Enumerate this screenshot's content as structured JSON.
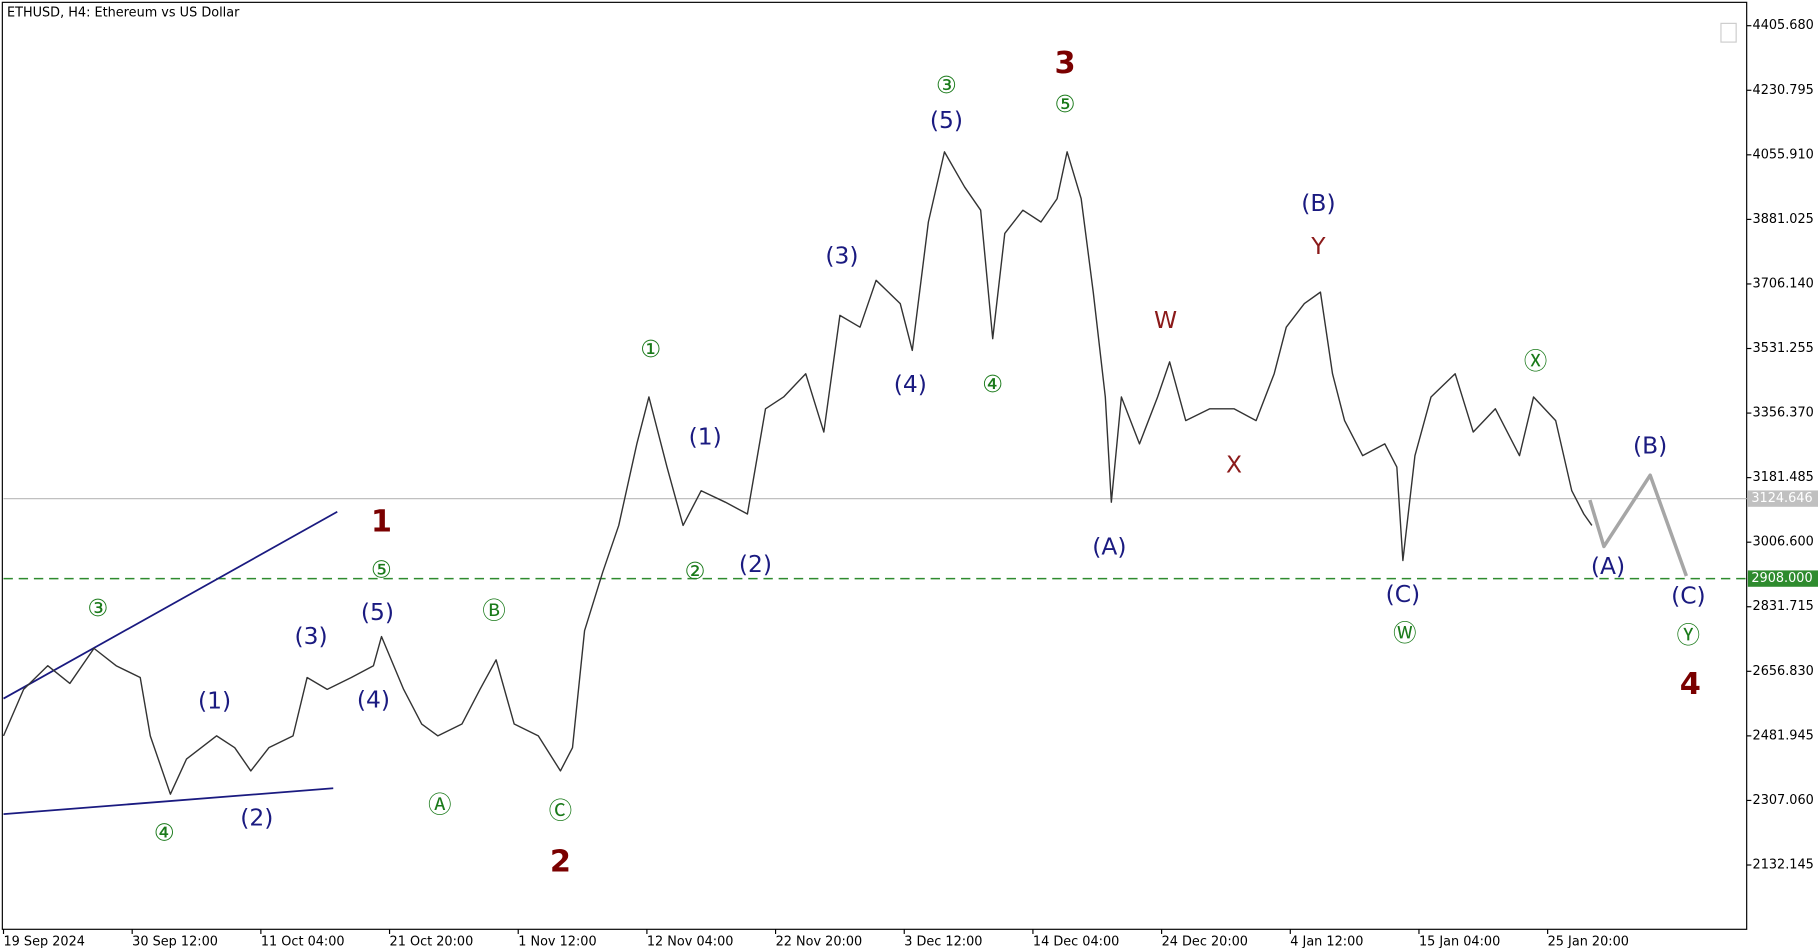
{
  "chart_data": {
    "type": "line",
    "title": "ETHUSD, H4:  Ethereum vs US Dollar",
    "xlim": [
      0,
      867
    ],
    "ylim": [
      1958,
      4469
    ],
    "xticks": [
      {
        "value": 0,
        "label": "19 Sep 2024"
      },
      {
        "value": 64,
        "label": "30 Sep 12:00"
      },
      {
        "value": 128,
        "label": "11 Oct 04:00"
      },
      {
        "value": 192,
        "label": "21 Oct 20:00"
      },
      {
        "value": 256,
        "label": "1 Nov 12:00"
      },
      {
        "value": 320,
        "label": "12 Nov 04:00"
      },
      {
        "value": 384,
        "label": "22 Nov 20:00"
      },
      {
        "value": 448,
        "label": "3 Dec 12:00"
      },
      {
        "value": 512,
        "label": "14 Dec 04:00"
      },
      {
        "value": 576,
        "label": "24 Dec 20:00"
      },
      {
        "value": 640,
        "label": "4 Jan 12:00"
      },
      {
        "value": 704,
        "label": "15 Jan 04:00"
      },
      {
        "value": 768,
        "label": "25 Jan 20:00"
      }
    ],
    "yticks": [
      {
        "value": 4405.68,
        "label": "4405.680"
      },
      {
        "value": 4230.795,
        "label": "4230.795"
      },
      {
        "value": 4055.91,
        "label": "4055.910"
      },
      {
        "value": 3881.025,
        "label": "3881.025"
      },
      {
        "value": 3706.14,
        "label": "3706.140"
      },
      {
        "value": 3531.255,
        "label": "3531.255"
      },
      {
        "value": 3356.37,
        "label": "3356.370"
      },
      {
        "value": 3181.485,
        "label": "3181.485"
      },
      {
        "value": 3006.6,
        "label": "3006.600"
      },
      {
        "value": 2831.715,
        "label": "2831.715"
      },
      {
        "value": 2656.83,
        "label": "2656.830"
      },
      {
        "value": 2481.945,
        "label": "2481.945"
      },
      {
        "value": 2307.06,
        "label": "2307.060"
      },
      {
        "value": 2132.145,
        "label": "2132.145"
      }
    ],
    "series": [
      {
        "color": "#333333",
        "x": [
          0,
          10,
          22,
          33,
          45,
          56,
          68,
          73,
          83,
          91,
          106,
          115,
          123,
          132,
          144,
          151,
          161,
          173,
          184,
          188,
          199,
          208,
          216,
          228,
          237,
          245,
          254,
          266,
          277,
          283,
          289,
          298,
          306,
          315,
          321,
          330,
          338,
          347,
          359,
          370,
          379,
          388,
          399,
          408,
          416,
          426,
          434,
          446,
          452,
          460,
          468,
          478,
          486,
          492,
          498,
          507,
          516,
          524,
          529,
          536,
          542,
          548,
          551,
          556,
          565,
          574,
          580,
          588,
          600,
          612,
          623,
          632,
          638,
          647,
          655,
          661,
          667,
          676,
          687,
          693,
          696,
          702,
          710,
          722,
          731,
          742,
          754,
          761,
          772,
          780,
          786,
          790
        ],
        "values": [
          2482,
          2608,
          2672,
          2624,
          2719,
          2672,
          2640,
          2482,
          2324,
          2419,
          2482,
          2450,
          2387,
          2450,
          2482,
          2640,
          2608,
          2640,
          2672,
          2751,
          2608,
          2514,
          2482,
          2514,
          2608,
          2688,
          2514,
          2482,
          2387,
          2450,
          2767,
          2925,
          3052,
          3273,
          3400,
          3210,
          3052,
          3146,
          3115,
          3083,
          3368,
          3400,
          3463,
          3305,
          3621,
          3589,
          3716,
          3653,
          3526,
          3874,
          4064,
          3969,
          3906,
          3558,
          3843,
          3906,
          3874,
          3937,
          4064,
          3937,
          3684,
          3400,
          3115,
          3400,
          3273,
          3400,
          3495,
          3336,
          3368,
          3368,
          3336,
          3463,
          3589,
          3653,
          3684,
          3463,
          3336,
          3241,
          3273,
          3210,
          2957,
          3241,
          3400,
          3463,
          3305,
          3368,
          3241,
          3400,
          3336,
          3146,
          3083,
          3052
        ]
      },
      {
        "color": "#a6a6a6",
        "x": [
          789,
          796,
          819,
          837
        ],
        "values": [
          3121,
          2995,
          3188,
          2915
        ]
      }
    ],
    "trendlines": [
      {
        "color": "#1a1a80",
        "x": [
          0,
          166
        ],
        "y": [
          2583,
          3089
        ]
      },
      {
        "color": "#1a1a80",
        "x": [
          0,
          164
        ],
        "y": [
          2270,
          2340
        ]
      }
    ],
    "levels": [
      {
        "value": 3124.646,
        "label": "3124.646",
        "color": "#c0c0c0",
        "style": "solid"
      },
      {
        "value": 2908,
        "label": "2908.000",
        "color": "#2e8b2e",
        "style": "dashed"
      }
    ],
    "annotations": [
      {
        "text": "1",
        "x": 188,
        "y": 3058,
        "color": "#7a0000"
      },
      {
        "text": "2",
        "x": 277,
        "y": 2137,
        "color": "#7a0000"
      },
      {
        "text": "3",
        "x": 528,
        "y": 4301,
        "color": "#7a0000"
      },
      {
        "text": "4",
        "x": 839,
        "y": 2618,
        "color": "#7a0000"
      },
      {
        "text": "③",
        "x": 47,
        "y": 2824,
        "color": "#1a7a1a"
      },
      {
        "text": "④",
        "x": 80,
        "y": 2216,
        "color": "#1a7a1a"
      },
      {
        "text": "⑤",
        "x": 188,
        "y": 2928,
        "color": "#1a7a1a"
      },
      {
        "text": "Ⓐ",
        "x": 217,
        "y": 2292,
        "color": "#1a7a1a"
      },
      {
        "text": "Ⓑ",
        "x": 244,
        "y": 2818,
        "color": "#1a7a1a"
      },
      {
        "text": "Ⓒ",
        "x": 277,
        "y": 2276,
        "color": "#1a7a1a"
      },
      {
        "text": "①",
        "x": 322,
        "y": 3526,
        "color": "#1a7a1a"
      },
      {
        "text": "②",
        "x": 344,
        "y": 2925,
        "color": "#1a7a1a"
      },
      {
        "text": "③",
        "x": 469,
        "y": 4241,
        "color": "#1a7a1a"
      },
      {
        "text": "④",
        "x": 492,
        "y": 3431,
        "color": "#1a7a1a"
      },
      {
        "text": "⑤",
        "x": 528,
        "y": 4190,
        "color": "#1a7a1a"
      },
      {
        "text": "Ⓦ",
        "x": 697,
        "y": 2757,
        "color": "#1a7a1a"
      },
      {
        "text": "Ⓧ",
        "x": 762,
        "y": 3494,
        "color": "#1a7a1a"
      },
      {
        "text": "Ⓨ",
        "x": 838,
        "y": 2751,
        "color": "#1a7a1a"
      },
      {
        "text": "(1)",
        "x": 105,
        "y": 2574,
        "color": "#1a1a80"
      },
      {
        "text": "(2)",
        "x": 126,
        "y": 2257,
        "color": "#1a1a80"
      },
      {
        "text": "(3)",
        "x": 153,
        "y": 2748,
        "color": "#1a1a80"
      },
      {
        "text": "(4)",
        "x": 184,
        "y": 2577,
        "color": "#1a1a80"
      },
      {
        "text": "(5)",
        "x": 186,
        "y": 2814,
        "color": "#1a1a80"
      },
      {
        "text": "(1)",
        "x": 349,
        "y": 3289,
        "color": "#1a1a80"
      },
      {
        "text": "(2)",
        "x": 374,
        "y": 2944,
        "color": "#1a1a80"
      },
      {
        "text": "(3)",
        "x": 417,
        "y": 3779,
        "color": "#1a1a80"
      },
      {
        "text": "(4)",
        "x": 451,
        "y": 3431,
        "color": "#1a1a80"
      },
      {
        "text": "(5)",
        "x": 469,
        "y": 4146,
        "color": "#1a1a80"
      },
      {
        "text": "(A)",
        "x": 550,
        "y": 2991,
        "color": "#1a1a80"
      },
      {
        "text": "(B)",
        "x": 654,
        "y": 3922,
        "color": "#1a1a80"
      },
      {
        "text": "(C)",
        "x": 696,
        "y": 2862,
        "color": "#1a1a80"
      },
      {
        "text": "(A)",
        "x": 798,
        "y": 2938,
        "color": "#1a1a80"
      },
      {
        "text": "(B)",
        "x": 819,
        "y": 3264,
        "color": "#1a1a80"
      },
      {
        "text": "(C)",
        "x": 838,
        "y": 2858,
        "color": "#1a1a80"
      },
      {
        "text": "W",
        "x": 578,
        "y": 3605,
        "color": "#8b1a1a"
      },
      {
        "text": "X",
        "x": 612,
        "y": 3213,
        "color": "#8b1a1a"
      },
      {
        "text": "Y",
        "x": 654,
        "y": 3805,
        "color": "#8b1a1a"
      }
    ]
  }
}
